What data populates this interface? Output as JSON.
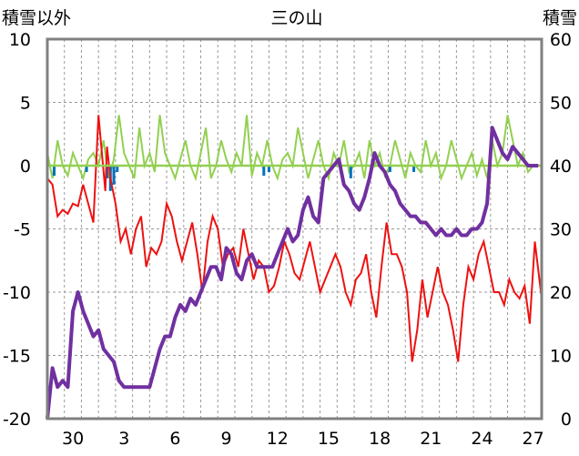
{
  "chart_data": {
    "type": "line",
    "title": "三の山",
    "ylabel_left": "積雪以外",
    "ylabel_right": "積雪",
    "ylim_left": [
      -20,
      10
    ],
    "ylim_right": [
      0,
      60
    ],
    "yticks_left": [
      "10",
      "5",
      "0",
      "-5",
      "-10",
      "-15",
      "-20"
    ],
    "yticks_right": [
      "60",
      "50",
      "40",
      "30",
      "20",
      "10",
      "0"
    ],
    "x_range": [
      0,
      29
    ],
    "xtick_positions": [
      1.5,
      4.5,
      7.5,
      10.5,
      13.5,
      16.5,
      19.5,
      22.5,
      25.5,
      28.5
    ],
    "xtick_labels": [
      "30",
      "3",
      "6",
      "9",
      "12",
      "15",
      "18",
      "21",
      "24",
      "27"
    ],
    "grid": true,
    "series": [
      {
        "axis": "left",
        "color": "#ee1111",
        "x": [
          0,
          0.3,
          0.6,
          0.9,
          1.2,
          1.5,
          1.8,
          2.1,
          2.4,
          2.7,
          3.0,
          3.2,
          3.4,
          3.5,
          3.7,
          4.0,
          4.3,
          4.6,
          4.9,
          5.2,
          5.5,
          5.8,
          6.1,
          6.4,
          6.7,
          7.0,
          7.3,
          7.6,
          7.9,
          8.2,
          8.5,
          8.8,
          9.1,
          9.4,
          9.7,
          10.0,
          10.3,
          10.6,
          10.9,
          11.2,
          11.5,
          11.8,
          12.1,
          12.4,
          12.7,
          13.0,
          13.3,
          13.6,
          13.9,
          14.2,
          14.5,
          14.8,
          15.1,
          15.4,
          15.7,
          16.0,
          16.3,
          16.6,
          16.9,
          17.2,
          17.5,
          17.8,
          18.1,
          18.4,
          18.7,
          19.0,
          19.3,
          19.6,
          19.9,
          20.2,
          20.5,
          20.8,
          21.1,
          21.4,
          21.7,
          22.0,
          22.3,
          22.6,
          22.9,
          23.2,
          23.5,
          23.8,
          24.1,
          24.4,
          24.7,
          25.0,
          25.3,
          25.6,
          25.9,
          26.2,
          26.5,
          26.8,
          27.1,
          27.4,
          27.7,
          28.0,
          28.3,
          28.6,
          29.0
        ],
        "values": [
          -1,
          -1.5,
          -4,
          -3.5,
          -3.8,
          -3,
          -3.2,
          -1.5,
          -3,
          -4.5,
          4,
          1,
          -2,
          1.5,
          -1,
          -3,
          -6,
          -5,
          -7,
          -5,
          -4,
          -8,
          -6.5,
          -7,
          -6,
          -3,
          -4,
          -6,
          -7.5,
          -6,
          -4.5,
          -7,
          -10,
          -6,
          -4,
          -5,
          -8,
          -7,
          -6.5,
          -8,
          -5,
          -7,
          -9,
          -7.5,
          -8,
          -10,
          -9.5,
          -8,
          -6,
          -7,
          -8.5,
          -9,
          -7.5,
          -6,
          -8,
          -10,
          -9,
          -8,
          -7,
          -8,
          -10,
          -11,
          -9,
          -8.5,
          -7,
          -10,
          -12,
          -8,
          -4.5,
          -7,
          -7,
          -8,
          -10,
          -15.5,
          -13,
          -9,
          -12,
          -10,
          -8,
          -10,
          -11,
          -13,
          -15.5,
          -11,
          -8,
          -9,
          -7,
          -6,
          -8,
          -10,
          -10,
          -11,
          -9,
          -10,
          -10.5,
          -9.5,
          -12.5,
          -6,
          -10.5
        ]
      },
      {
        "axis": "left",
        "color": "#92d050",
        "x": [
          0,
          0.3,
          0.6,
          0.9,
          1.2,
          1.5,
          1.8,
          2.1,
          2.4,
          2.7,
          3.0,
          3.3,
          3.6,
          3.9,
          4.2,
          4.5,
          4.8,
          5.1,
          5.4,
          5.7,
          6.0,
          6.3,
          6.6,
          6.9,
          7.2,
          7.5,
          7.8,
          8.1,
          8.4,
          8.7,
          9.0,
          9.3,
          9.6,
          9.9,
          10.2,
          10.5,
          10.8,
          11.1,
          11.4,
          11.7,
          12.0,
          12.3,
          12.6,
          12.9,
          13.2,
          13.5,
          13.8,
          14.1,
          14.4,
          14.7,
          15.0,
          15.3,
          15.6,
          15.9,
          16.2,
          16.5,
          16.8,
          17.1,
          17.4,
          17.7,
          18.0,
          18.3,
          18.6,
          18.9,
          19.2,
          19.5,
          19.8,
          20.1,
          20.4,
          20.7,
          21.0,
          21.3,
          21.6,
          21.9,
          22.2,
          22.5,
          22.8,
          23.1,
          23.4,
          23.7,
          24.0,
          24.3,
          24.6,
          24.9,
          25.2,
          25.5,
          25.8,
          26.1,
          26.4,
          26.7,
          27.0,
          27.3,
          27.6,
          27.9,
          28.2,
          28.5,
          29.0
        ],
        "values": [
          1,
          -1,
          2,
          0,
          -0.8,
          1,
          0,
          -1,
          0.5,
          1,
          0,
          2,
          -1,
          0.5,
          4,
          1,
          0,
          -1,
          3,
          0,
          1,
          -0.5,
          4,
          1,
          0,
          -1,
          0.5,
          2,
          0,
          -1,
          1,
          3,
          -1,
          0,
          2,
          0.5,
          -0.5,
          1,
          0,
          4,
          -0.8,
          1,
          0,
          2,
          0,
          -1,
          0.5,
          1,
          0,
          3,
          1,
          -1,
          0.5,
          2,
          0,
          -1,
          1,
          0,
          2,
          -0.5,
          0,
          1,
          -1,
          2,
          0,
          1,
          -0.8,
          0,
          2,
          0.5,
          -1,
          1,
          0,
          -0.5,
          2,
          0,
          1,
          -1,
          0,
          2,
          0.5,
          -1,
          0,
          1,
          -0.8,
          0.5,
          -1,
          2,
          0,
          1,
          4,
          2,
          0,
          1,
          -0.5,
          0,
          0
        ]
      },
      {
        "axis": "left",
        "color": "#0070c0",
        "x": [
          0.4,
          2.3,
          3.5,
          3.7,
          3.9,
          4.1,
          12.7,
          13.0,
          17.8,
          20.1,
          21.5
        ],
        "values": [
          -0.8,
          -0.5,
          -1,
          -2,
          -1.5,
          -0.5,
          -0.8,
          -0.5,
          -1,
          -0.5,
          -0.5
        ]
      },
      {
        "axis": "right",
        "color": "#7030a0",
        "x": [
          0,
          0.3,
          0.6,
          0.9,
          1.2,
          1.5,
          1.8,
          2.1,
          2.4,
          2.7,
          3.0,
          3.3,
          3.6,
          3.9,
          4.2,
          4.5,
          4.8,
          5.1,
          5.4,
          5.7,
          6.0,
          6.3,
          6.6,
          6.9,
          7.2,
          7.5,
          7.8,
          8.1,
          8.4,
          8.7,
          9.0,
          9.3,
          9.6,
          9.9,
          10.2,
          10.5,
          10.8,
          11.1,
          11.4,
          11.7,
          12.0,
          12.3,
          12.6,
          12.9,
          13.2,
          13.5,
          13.8,
          14.1,
          14.4,
          14.7,
          15.0,
          15.3,
          15.6,
          15.9,
          16.2,
          16.5,
          16.8,
          17.1,
          17.4,
          17.7,
          18.0,
          18.3,
          18.6,
          18.9,
          19.2,
          19.5,
          19.8,
          20.1,
          20.4,
          20.7,
          21.0,
          21.3,
          21.6,
          21.9,
          22.2,
          22.5,
          22.8,
          23.1,
          23.4,
          23.7,
          24.0,
          24.3,
          24.6,
          24.9,
          25.2,
          25.5,
          25.8,
          26.1,
          26.4,
          26.7,
          27.0,
          27.3,
          27.6,
          27.9,
          28.2,
          28.5,
          28.8
        ],
        "values": [
          0,
          8,
          5,
          6,
          5,
          17,
          20,
          17,
          15,
          13,
          14,
          11,
          10,
          9,
          6,
          5,
          5,
          5,
          5,
          5,
          5,
          8,
          11,
          13,
          13,
          16,
          18,
          17,
          19,
          18,
          20,
          22,
          24,
          24,
          22,
          27,
          26,
          23,
          22,
          25,
          26,
          24,
          24,
          24,
          24,
          26,
          28,
          30,
          28,
          29,
          33,
          35,
          32,
          31,
          38,
          39,
          40,
          41,
          37,
          36,
          34,
          33,
          35,
          38,
          42,
          40,
          39,
          37,
          36,
          34,
          33,
          32,
          32,
          31,
          31,
          30,
          29,
          30,
          29,
          29,
          30,
          29,
          29,
          30,
          30,
          31,
          34,
          46,
          44,
          42,
          41,
          43,
          42,
          41,
          40,
          40,
          40
        ]
      }
    ]
  }
}
